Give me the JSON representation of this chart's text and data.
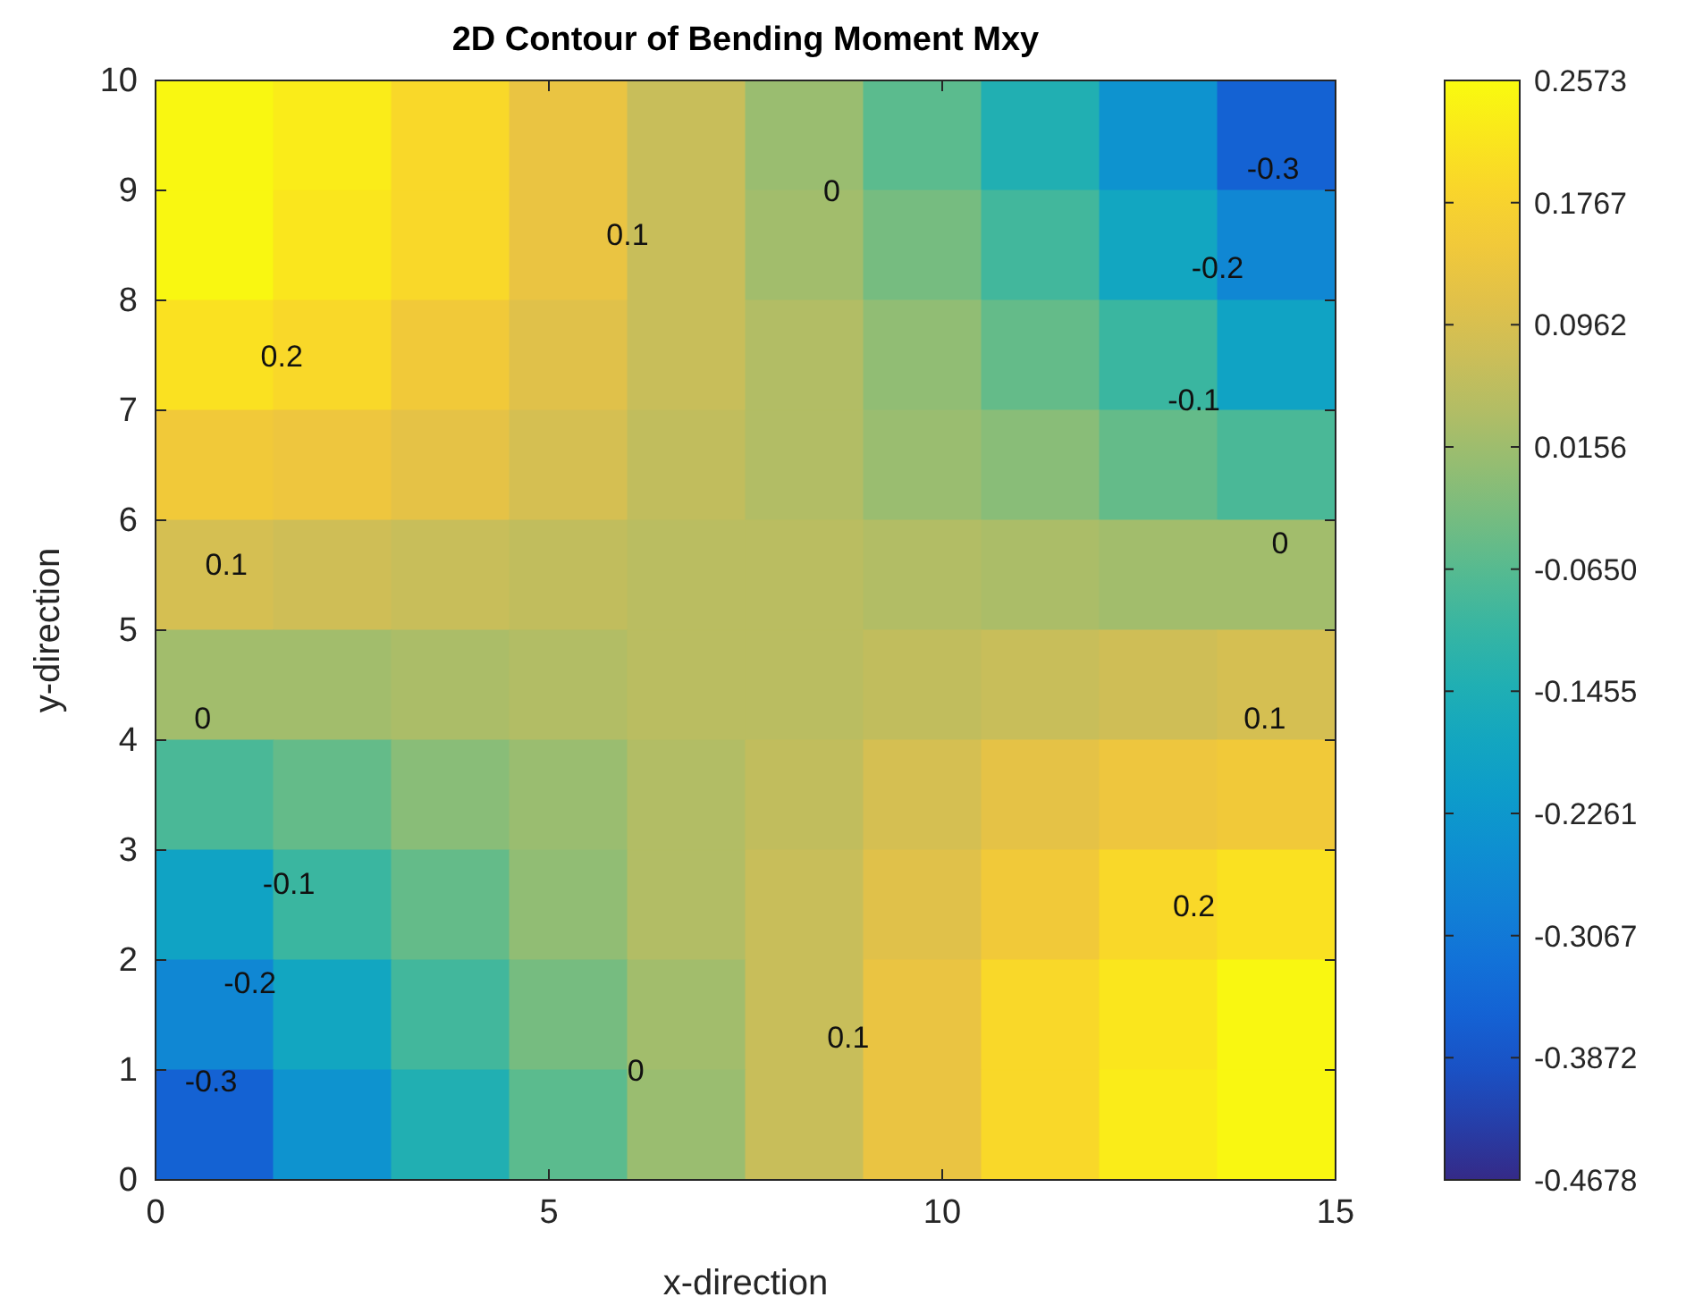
{
  "chart_data": {
    "type": "heatmap",
    "title": "2D Contour of Bending Moment Mxy",
    "xlabel": "x-direction",
    "ylabel": "y-direction",
    "x": [
      0.75,
      2.25,
      3.75,
      5.25,
      6.75,
      8.25,
      9.75,
      11.25,
      12.75,
      14.25
    ],
    "y": [
      9.5,
      8.5,
      7.5,
      6.5,
      5.5,
      4.5,
      3.5,
      2.5,
      1.5,
      0.5
    ],
    "xlim": [
      0,
      15
    ],
    "xticks": [
      0,
      5,
      10,
      15
    ],
    "ylim": [
      0,
      10
    ],
    "yticks": [
      0,
      1,
      2,
      3,
      4,
      5,
      6,
      7,
      8,
      9,
      10
    ],
    "clim": [
      -0.4678,
      0.2573
    ],
    "cticks": [
      0.2573,
      0.1767,
      0.0962,
      0.0156,
      {
        "value": -0.065,
        "label": "-0.0650"
      },
      -0.1455,
      -0.2261,
      -0.3067,
      -0.3872,
      -0.4678
    ],
    "cells": [
      [
        0.25,
        0.23,
        0.19,
        0.13,
        0.07,
        0.01,
        -0.06,
        -0.14,
        -0.24,
        -0.36
      ],
      [
        0.25,
        0.22,
        0.19,
        0.13,
        0.07,
        0.02,
        -0.03,
        -0.09,
        -0.18,
        -0.27
      ],
      [
        0.21,
        0.19,
        0.15,
        0.11,
        0.07,
        0.04,
        0,
        -0.05,
        -0.1,
        -0.19
      ],
      [
        0.15,
        0.14,
        0.12,
        0.09,
        0.06,
        0.04,
        0.01,
        -0.01,
        -0.05,
        -0.08
      ],
      [
        0.09,
        0.08,
        0.07,
        0.06,
        0.05,
        0.05,
        0.04,
        0.03,
        0.02,
        0.02
      ],
      [
        0.02,
        0.02,
        0.03,
        0.04,
        0.05,
        0.05,
        0.06,
        0.07,
        0.08,
        0.09
      ],
      [
        -0.08,
        -0.05,
        -0.01,
        0.01,
        0.04,
        0.06,
        0.09,
        0.12,
        0.14,
        0.15
      ],
      [
        -0.19,
        -0.1,
        -0.05,
        0,
        0.04,
        0.07,
        0.11,
        0.15,
        0.19,
        0.21
      ],
      [
        -0.27,
        -0.18,
        -0.09,
        -0.03,
        0.02,
        0.07,
        0.13,
        0.19,
        0.22,
        0.25
      ],
      [
        -0.36,
        -0.24,
        -0.14,
        -0.06,
        0.01,
        0.07,
        0.13,
        0.19,
        0.23,
        0.25
      ]
    ],
    "annotations": [
      "0.1",
      "0",
      "-0.3",
      "-0.2",
      "-0.1",
      "0",
      "0.1",
      "0.2",
      "0.1",
      "0",
      "-0.2",
      "-0.3",
      "-0.1",
      "0",
      "0.1",
      "0.2"
    ]
  }
}
